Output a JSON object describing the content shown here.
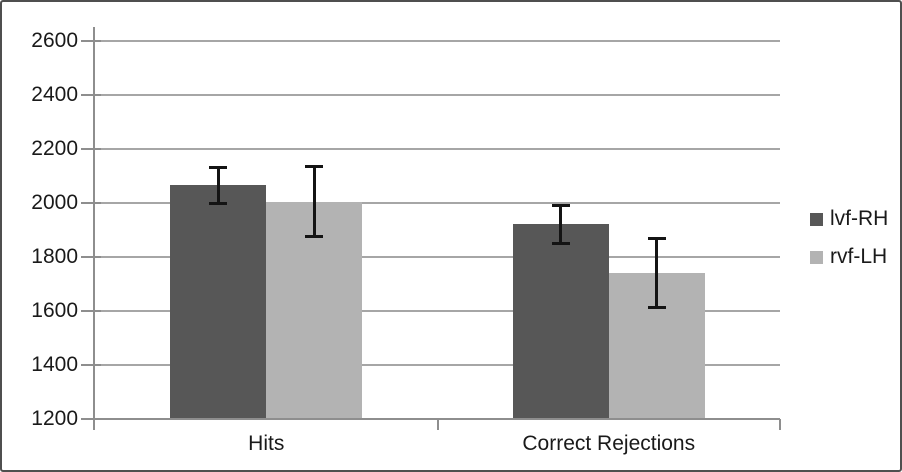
{
  "chart_data": {
    "type": "bar",
    "title": "",
    "xlabel": "",
    "ylabel": "",
    "categories": [
      "Hits",
      "Correct Rejections"
    ],
    "series": [
      {
        "name": "lvf-RH",
        "color": "#575757",
        "values": [
          2065,
          1920
        ],
        "errors": [
          73,
          75
        ]
      },
      {
        "name": "rvf-LH",
        "color": "#b3b3b3",
        "values": [
          2005,
          1740
        ],
        "errors": [
          135,
          133
        ]
      }
    ],
    "error_bars": true,
    "ylim": [
      1200,
      2600
    ],
    "yticks": [
      2600,
      2400,
      2200,
      2000,
      1800,
      1600,
      1400,
      1200
    ],
    "grid": true,
    "legend_position": "right",
    "colors": {
      "gridline": "#a6a6a6",
      "axis": "#8e8e8e",
      "error_bar": "#141414",
      "text": "#1a1a1a",
      "figure_border": "#4f4f4f",
      "background": "#ffffff"
    }
  }
}
